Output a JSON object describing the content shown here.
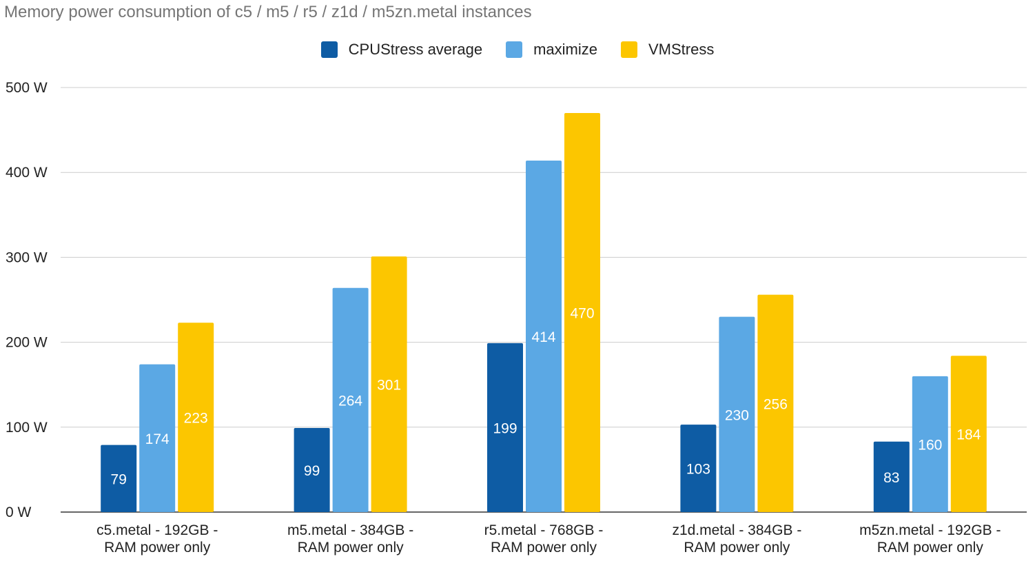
{
  "chart_data": {
    "type": "bar",
    "title": "Memory power consumption of c5 / m5 / r5 / z1d / m5zn.metal instances",
    "categories": [
      [
        "c5.metal - 192GB -",
        "RAM power only"
      ],
      [
        "m5.metal - 384GB -",
        "RAM power only"
      ],
      [
        "r5.metal - 768GB -",
        "RAM power only"
      ],
      [
        "z1d.metal - 384GB -",
        "RAM power only"
      ],
      [
        "m5zn.metal - 192GB -",
        "RAM power only"
      ]
    ],
    "series": [
      {
        "name": "CPUStress average",
        "color": "#0e5ca4",
        "values": [
          79,
          99,
          199,
          103,
          83
        ]
      },
      {
        "name": "maximize",
        "color": "#5ba8e4",
        "values": [
          174,
          264,
          414,
          230,
          160
        ]
      },
      {
        "name": "VMStress",
        "color": "#fcc600",
        "values": [
          223,
          301,
          470,
          256,
          184
        ]
      }
    ],
    "ylim": [
      0,
      500
    ],
    "yticks": [
      0,
      100,
      200,
      300,
      400,
      500
    ],
    "ytick_suffix": " W",
    "xlabel": "",
    "ylabel": "",
    "legend": "top-center",
    "grid": true
  }
}
